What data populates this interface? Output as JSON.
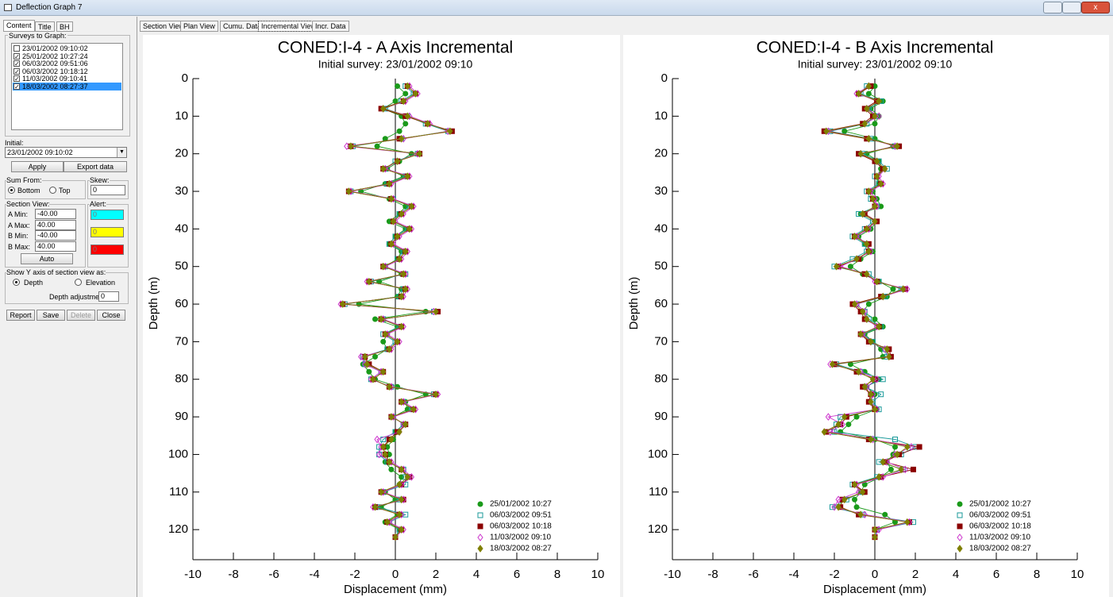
{
  "window": {
    "title": "Deflection Graph 7",
    "side_tabs": [
      "Content",
      "Title",
      "BH"
    ],
    "side_active": 0,
    "top_tabs": [
      "Section View",
      "Plan View",
      "Cumu. Data",
      "Incremental View",
      "Incr. Data"
    ],
    "top_active": 3
  },
  "panel": {
    "surveys_label": "Surveys to Graph:",
    "surveys": [
      {
        "label": "23/01/2002 09:10:02",
        "checked": false
      },
      {
        "label": "25/01/2002 10:27:24",
        "checked": true
      },
      {
        "label": "06/03/2002 09:51:06",
        "checked": true
      },
      {
        "label": "06/03/2002 10:18:12",
        "checked": true
      },
      {
        "label": "11/03/2002 09:10:41",
        "checked": true
      },
      {
        "label": "18/03/2002 08:27:37",
        "checked": true
      }
    ],
    "surveys_selected": 5,
    "initial_label": "Initial:",
    "initial": "23/01/2002 09:10:02",
    "apply": "Apply",
    "export": "Export data",
    "sum_from_label": "Sum From:",
    "sum_options": [
      "Bottom",
      "Top"
    ],
    "sum_selected": 0,
    "skew_label": "Skew:",
    "skew": "0",
    "section_label": "Section View:",
    "limits": [
      {
        "label": "A Min:",
        "value": "-40.00"
      },
      {
        "label": "A Max:",
        "value": "40.00"
      },
      {
        "label": "B Min:",
        "value": "-40.00"
      },
      {
        "label": "B Max:",
        "value": "40.00"
      }
    ],
    "alert_label": "Alert:",
    "alerts": [
      {
        "value": "0",
        "color": "#00ffff"
      },
      {
        "value": "0",
        "color": "#ffff00"
      },
      {
        "value": "0",
        "color": "#ff0000"
      }
    ],
    "auto": "Auto",
    "yaxis_label": "Show Y axis of section view as:",
    "yaxis_options": [
      "Depth",
      "Elevation"
    ],
    "yaxis_selected": 0,
    "depth_adj_label": "Depth adjustment:",
    "depth_adj": "0",
    "buttons": [
      "Report",
      "Save",
      "Delete",
      "Close"
    ]
  },
  "chart_data": [
    {
      "type": "line",
      "title": "CONED:I-4 - A Axis Incremental",
      "subtitle": "Initial survey:  23/01/2002 09:10",
      "x_label": "Displacement  (mm)",
      "y_label": "Depth  (m)",
      "y_inverted": true,
      "zero_line": true,
      "legend": "lower right",
      "xlim": [
        -10,
        10
      ],
      "xticks": [
        -10,
        -8,
        -6,
        -4,
        -2,
        0,
        2,
        4,
        6,
        8,
        10
      ],
      "ylim": [
        0,
        128
      ],
      "yticks": [
        0,
        10,
        20,
        30,
        40,
        50,
        60,
        70,
        80,
        90,
        100,
        110,
        120
      ],
      "y": [
        2,
        4,
        6,
        8,
        10,
        12,
        14,
        16,
        18,
        20,
        22,
        24,
        26,
        28,
        30,
        32,
        34,
        36,
        38,
        40,
        42,
        44,
        46,
        48,
        50,
        52,
        54,
        56,
        58,
        60,
        62,
        64,
        66,
        68,
        70,
        72,
        74,
        76,
        78,
        80,
        82,
        84,
        86,
        88,
        90,
        92,
        94,
        96,
        98,
        100,
        102,
        104,
        106,
        108,
        110,
        112,
        114,
        116,
        118,
        120,
        122
      ],
      "series": [
        {
          "name": "25/01/2002 10:27",
          "color": "#1a9a1a",
          "marker": "circle",
          "values": [
            0.1,
            0.5,
            0.0,
            -0.6,
            0.3,
            0.5,
            0.2,
            -0.5,
            -0.9,
            0.8,
            0.2,
            -0.4,
            0.4,
            -0.5,
            -1.7,
            -0.3,
            0.5,
            0.2,
            -0.3,
            0.5,
            0.0,
            -0.3,
            0.3,
            0.1,
            -0.5,
            0.3,
            -0.8,
            0.3,
            0.1,
            -1.8,
            1.5,
            -1.0,
            0.1,
            -0.4,
            -0.6,
            -0.4,
            -1.0,
            -1.6,
            -1.3,
            -1.0,
            0.1,
            1.5,
            0.5,
            0.6,
            -0.1,
            0.4,
            0.0,
            -0.1,
            -0.4,
            -0.3,
            -0.5,
            -0.2,
            0.3,
            0.2,
            -0.5,
            0.0,
            -0.7,
            0.1,
            -0.5,
            0.2,
            0.0
          ]
        },
        {
          "name": "06/03/2002 09:51",
          "color": "#1a9a9a",
          "marker": "square-open",
          "values": [
            0.5,
            0.9,
            0.3,
            -0.5,
            0.6,
            1.5,
            2.6,
            0.3,
            -2.1,
            1.1,
            0.0,
            -0.5,
            0.5,
            -0.4,
            -2.2,
            -0.1,
            0.7,
            0.2,
            -0.1,
            0.6,
            0.0,
            -0.3,
            0.4,
            0.1,
            -0.5,
            0.5,
            -1.2,
            0.4,
            0.2,
            -2.5,
            1.9,
            -0.6,
            0.2,
            -0.6,
            0.0,
            -0.4,
            -1.6,
            -1.5,
            -0.7,
            -1.2,
            -0.2,
            1.9,
            0.4,
            0.8,
            -0.1,
            0.4,
            0.0,
            -0.6,
            -0.8,
            -0.8,
            -0.4,
            0.4,
            0.5,
            0.5,
            -0.6,
            0.2,
            -0.9,
            0.5,
            -0.3,
            0.2,
            0.0
          ]
        },
        {
          "name": "06/03/2002 10:18",
          "color": "#8b0000",
          "marker": "square",
          "values": [
            0.6,
            1.0,
            0.4,
            -0.7,
            0.5,
            1.6,
            2.8,
            0.2,
            -2.2,
            1.2,
            0.1,
            -0.6,
            0.6,
            -0.3,
            -2.3,
            -0.2,
            0.8,
            0.3,
            -0.1,
            0.7,
            0.1,
            -0.2,
            0.5,
            0.2,
            -0.6,
            0.4,
            -1.3,
            0.5,
            0.3,
            -2.6,
            2.1,
            -0.7,
            0.3,
            -0.5,
            0.1,
            -0.3,
            -1.5,
            -1.3,
            -0.6,
            -1.1,
            -0.3,
            2.0,
            0.3,
            0.9,
            -0.2,
            0.5,
            0.1,
            -0.3,
            -0.6,
            -0.5,
            -0.3,
            0.3,
            0.7,
            0.3,
            -0.7,
            0.4,
            -1.0,
            0.2,
            -0.4,
            0.3,
            0.0
          ]
        },
        {
          "name": "11/03/2002 09:10",
          "color": "#cc33cc",
          "marker": "diamond-open",
          "values": [
            0.7,
            1.1,
            0.5,
            -0.6,
            0.7,
            1.7,
            2.6,
            0.4,
            -2.4,
            1.1,
            0.1,
            -0.5,
            0.7,
            -0.2,
            -2.2,
            -0.1,
            0.9,
            0.4,
            0.0,
            0.8,
            0.2,
            -0.1,
            0.6,
            0.3,
            -0.5,
            0.5,
            -1.4,
            0.6,
            0.4,
            -2.7,
            1.9,
            -0.6,
            0.4,
            -0.4,
            0.2,
            -0.2,
            -1.7,
            -1.5,
            -0.7,
            -1.2,
            -0.2,
            2.1,
            0.4,
            1.0,
            -0.1,
            0.4,
            0.2,
            -0.9,
            -0.7,
            -0.8,
            -0.2,
            0.4,
            0.8,
            0.3,
            -0.6,
            0.4,
            -1.1,
            0.3,
            -0.3,
            0.4,
            0.0
          ]
        },
        {
          "name": "18/03/2002 08:27",
          "color": "#808000",
          "marker": "diamond",
          "values": [
            0.6,
            1.0,
            0.4,
            -0.6,
            0.6,
            1.6,
            2.7,
            0.3,
            -2.2,
            1.2,
            0.1,
            -0.6,
            0.6,
            -0.3,
            -2.3,
            -0.2,
            0.8,
            0.3,
            -0.1,
            0.7,
            0.1,
            -0.2,
            0.5,
            0.2,
            -0.6,
            0.4,
            -1.3,
            0.5,
            0.3,
            -2.6,
            2.0,
            -0.7,
            0.3,
            -0.5,
            0.1,
            -0.3,
            -1.5,
            -1.4,
            -0.6,
            -1.1,
            -0.3,
            2.0,
            0.3,
            0.9,
            -0.2,
            0.5,
            0.2,
            -0.2,
            -0.6,
            -0.5,
            -0.3,
            0.3,
            0.6,
            0.2,
            -0.7,
            0.3,
            -1.0,
            0.2,
            -0.4,
            0.3,
            0.0
          ]
        }
      ]
    },
    {
      "type": "line",
      "title": "CONED:I-4 - B Axis Incremental",
      "subtitle": "Initial survey:  23/01/2002 09:10",
      "x_label": "Displacement  (mm)",
      "y_label": "Depth  (m)",
      "y_inverted": true,
      "zero_line": true,
      "legend": "lower right",
      "xlim": [
        -10,
        10
      ],
      "xticks": [
        -10,
        -8,
        -6,
        -4,
        -2,
        0,
        2,
        4,
        6,
        8,
        10
      ],
      "ylim": [
        0,
        128
      ],
      "yticks": [
        0,
        10,
        20,
        30,
        40,
        50,
        60,
        70,
        80,
        90,
        100,
        110,
        120
      ],
      "y": [
        2,
        4,
        6,
        8,
        10,
        12,
        14,
        16,
        18,
        20,
        22,
        24,
        26,
        28,
        30,
        32,
        34,
        36,
        38,
        40,
        42,
        44,
        46,
        48,
        50,
        52,
        54,
        56,
        58,
        60,
        62,
        64,
        66,
        68,
        70,
        72,
        74,
        76,
        78,
        80,
        82,
        84,
        86,
        88,
        90,
        92,
        94,
        96,
        98,
        100,
        102,
        104,
        106,
        108,
        110,
        112,
        114,
        116,
        118,
        120,
        122
      ],
      "series": [
        {
          "name": "25/01/2002 10:27",
          "color": "#1a9a1a",
          "marker": "circle",
          "values": [
            0.0,
            -0.3,
            0.4,
            -0.2,
            0.2,
            0.0,
            -1.5,
            0.0,
            0.9,
            -0.4,
            0.2,
            0.3,
            0.1,
            0.2,
            -0.1,
            0.1,
            0.3,
            -0.7,
            0.1,
            -0.2,
            -0.8,
            -0.5,
            -0.1,
            -0.7,
            -1.2,
            -0.6,
            0.2,
            0.9,
            0.6,
            -0.3,
            -0.6,
            0.0,
            0.4,
            -0.5,
            -0.1,
            0.3,
            0.4,
            -1.2,
            -0.5,
            0.2,
            -0.4,
            0.0,
            -0.3,
            0.1,
            -0.9,
            -1.3,
            -1.7,
            0.0,
            1.0,
            0.9,
            0.6,
            0.8,
            0.3,
            -0.5,
            -0.7,
            -1.0,
            -0.9,
            0.5,
            1.0,
            0.0,
            0.0
          ]
        },
        {
          "name": "06/03/2002 09:51",
          "color": "#1a9a9a",
          "marker": "square-open",
          "values": [
            -0.4,
            -0.7,
            0.3,
            -0.3,
            0.0,
            -0.4,
            -2.2,
            -0.2,
            1.0,
            -0.6,
            0.2,
            0.6,
            0.0,
            0.2,
            -0.4,
            -0.2,
            0.1,
            -0.8,
            -0.1,
            -0.5,
            -1.1,
            -0.5,
            -0.4,
            -1.1,
            -2.0,
            -0.3,
            0.2,
            1.3,
            0.5,
            -0.9,
            -0.5,
            -0.3,
            0.3,
            -0.6,
            -0.1,
            0.5,
            0.6,
            -1.9,
            -0.7,
            0.4,
            -0.5,
            0.3,
            -0.1,
            0.2,
            -1.7,
            -1.9,
            -2.0,
            1.0,
            2.0,
            1.3,
            0.2,
            1.4,
            0.1,
            -1.1,
            -0.6,
            -1.4,
            -2.1,
            -0.6,
            1.9,
            0.1,
            0.0
          ]
        },
        {
          "name": "06/03/2002 10:18",
          "color": "#8b0000",
          "marker": "square",
          "values": [
            -0.2,
            -0.8,
            0.1,
            -0.5,
            -0.1,
            -0.6,
            -2.5,
            -0.4,
            1.2,
            -0.8,
            0.0,
            0.4,
            0.1,
            0.3,
            -0.3,
            -0.1,
            0.0,
            -0.5,
            0.1,
            -0.4,
            -1.0,
            -0.3,
            -0.3,
            -0.8,
            -1.8,
            -0.5,
            0.1,
            1.5,
            0.3,
            -1.1,
            -0.7,
            -0.5,
            0.2,
            -0.7,
            -0.3,
            0.7,
            0.8,
            -2.0,
            -0.9,
            0.0,
            -0.6,
            -0.2,
            -0.3,
            0.0,
            -1.4,
            -1.7,
            -2.4,
            -0.3,
            2.2,
            1.2,
            0.5,
            1.9,
            0.3,
            -1.0,
            -0.5,
            -1.6,
            -1.7,
            -0.8,
            1.7,
            0.0,
            0.0
          ]
        },
        {
          "name": "11/03/2002 09:10",
          "color": "#cc33cc",
          "marker": "diamond-open",
          "values": [
            -0.3,
            -0.9,
            0.2,
            -0.4,
            0.2,
            -0.5,
            -2.3,
            -0.3,
            1.0,
            -0.7,
            0.1,
            0.5,
            0.2,
            0.4,
            -0.2,
            0.0,
            0.1,
            -0.6,
            0.0,
            -0.3,
            -0.9,
            -0.4,
            -0.2,
            -0.9,
            -1.7,
            -0.4,
            0.0,
            1.6,
            0.4,
            -0.9,
            -0.5,
            -0.4,
            0.1,
            -0.6,
            -0.2,
            0.5,
            0.7,
            -2.2,
            -0.7,
            0.1,
            -0.4,
            -0.1,
            -0.2,
            0.1,
            -2.3,
            -1.6,
            -2.2,
            -0.1,
            1.8,
            1.0,
            0.6,
            1.5,
            0.4,
            -0.9,
            -0.8,
            -1.8,
            -2.0,
            -0.5,
            1.7,
            0.2,
            0.0
          ]
        },
        {
          "name": "18/03/2002 08:27",
          "color": "#808000",
          "marker": "diamond",
          "values": [
            -0.3,
            -0.8,
            0.2,
            -0.4,
            0.0,
            -0.5,
            -2.4,
            -0.3,
            1.1,
            -0.7,
            0.1,
            0.5,
            0.1,
            0.3,
            -0.3,
            -0.1,
            0.0,
            -0.6,
            0.0,
            -0.4,
            -1.0,
            -0.4,
            -0.3,
            -0.9,
            -1.9,
            -0.4,
            0.1,
            1.4,
            0.4,
            -1.0,
            -0.6,
            -0.4,
            0.2,
            -0.7,
            -0.2,
            0.6,
            0.7,
            -2.1,
            -0.8,
            -0.1,
            -0.5,
            -0.2,
            -0.2,
            0.0,
            -1.5,
            -1.8,
            -2.5,
            -0.2,
            1.6,
            1.1,
            0.4,
            1.3,
            0.2,
            -1.0,
            -0.6,
            -1.5,
            -1.8,
            -0.7,
            1.6,
            0.0,
            0.0
          ]
        }
      ]
    }
  ]
}
